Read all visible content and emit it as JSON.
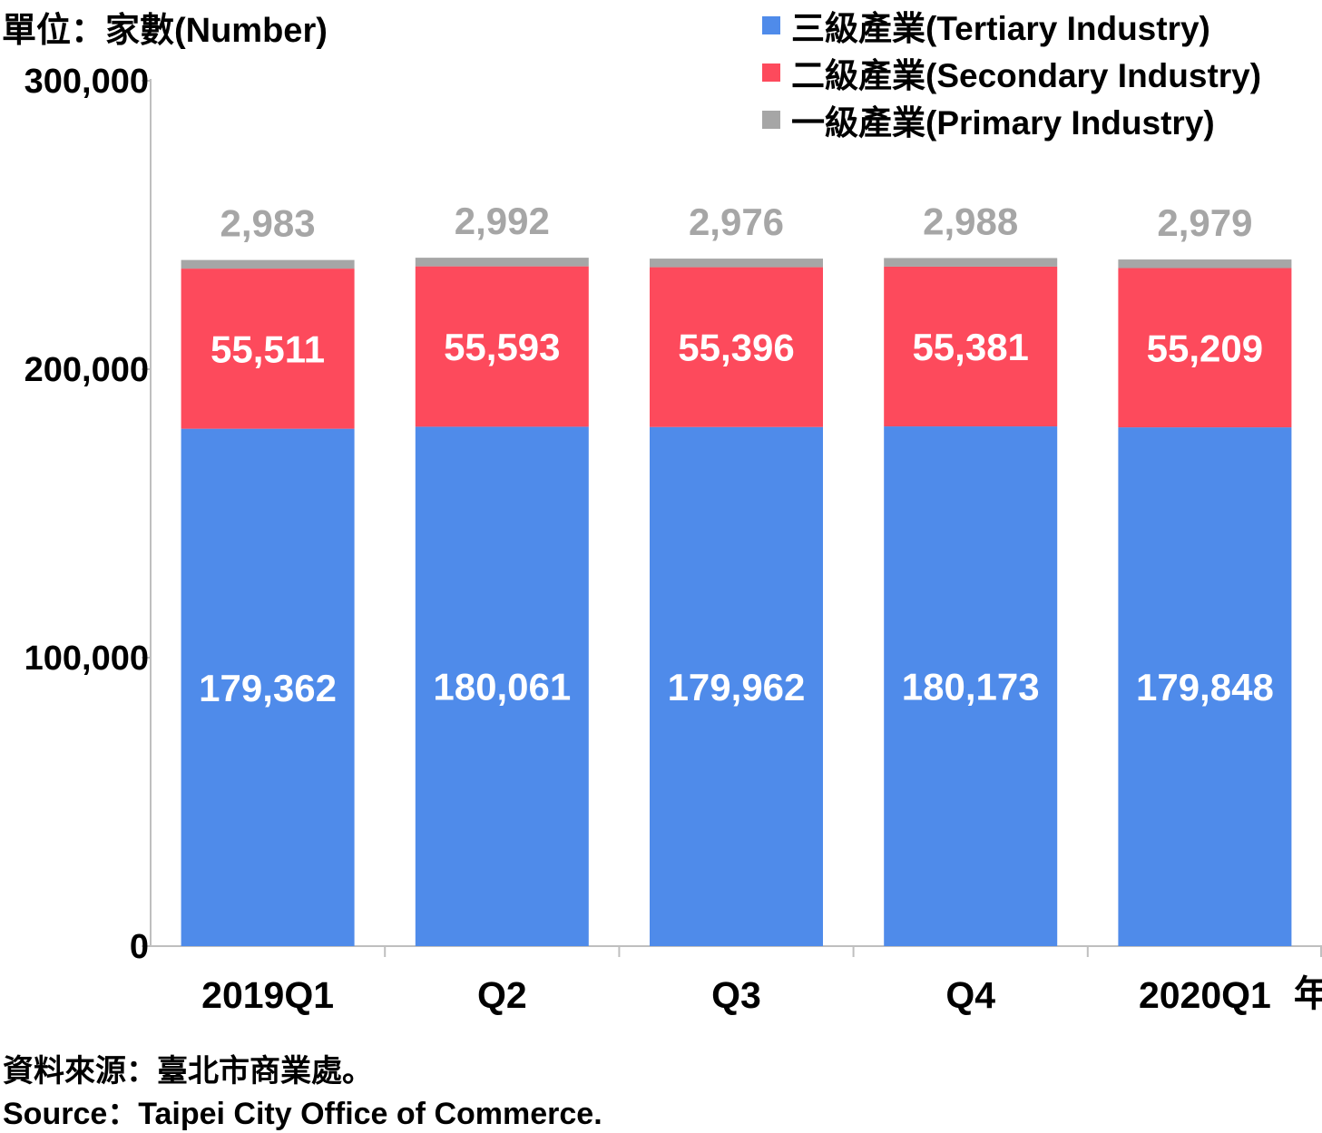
{
  "unit_label": "單位：家數(Number)",
  "x_axis_suffix": "年",
  "source_zh": "資料來源：臺北市商業處。",
  "source_en": "Source：Taipei City Office of Commerce.",
  "colors": {
    "tertiary": "#4F8BEA",
    "secondary": "#FD4A5C",
    "primary": "#A6A6A6",
    "axis": "#BFBFBF"
  },
  "legend": [
    {
      "label": "三級產業(Tertiary Industry)",
      "color_key": "tertiary"
    },
    {
      "label": "二級產業(Secondary Industry)",
      "color_key": "secondary"
    },
    {
      "label": "一級產業(Primary Industry)",
      "color_key": "primary"
    }
  ],
  "chart_data": {
    "type": "bar",
    "stacked": true,
    "categories": [
      "2019Q1",
      "Q2",
      "Q3",
      "Q4",
      "2020Q1"
    ],
    "series": [
      {
        "name": "三級產業(Tertiary Industry)",
        "color_key": "tertiary",
        "values": [
          179362,
          180061,
          179962,
          180173,
          179848
        ],
        "labels": [
          "179,362",
          "180,061",
          "179,962",
          "180,173",
          "179,848"
        ]
      },
      {
        "name": "二級產業(Secondary Industry)",
        "color_key": "secondary",
        "values": [
          55511,
          55593,
          55396,
          55381,
          55209
        ],
        "labels": [
          "55,511",
          "55,593",
          "55,396",
          "55,381",
          "55,209"
        ]
      },
      {
        "name": "一級產業(Primary Industry)",
        "color_key": "primary",
        "values": [
          2983,
          2992,
          2976,
          2988,
          2979
        ],
        "labels": [
          "2,983",
          "2,992",
          "2,976",
          "2,988",
          "2,979"
        ]
      }
    ],
    "ylim": [
      0,
      300000
    ],
    "yticks": [
      0,
      100000,
      200000,
      300000
    ],
    "ytick_labels": [
      "0",
      "100,000",
      "200,000",
      "300,000"
    ],
    "grid": false,
    "legend_position": "top-right"
  }
}
